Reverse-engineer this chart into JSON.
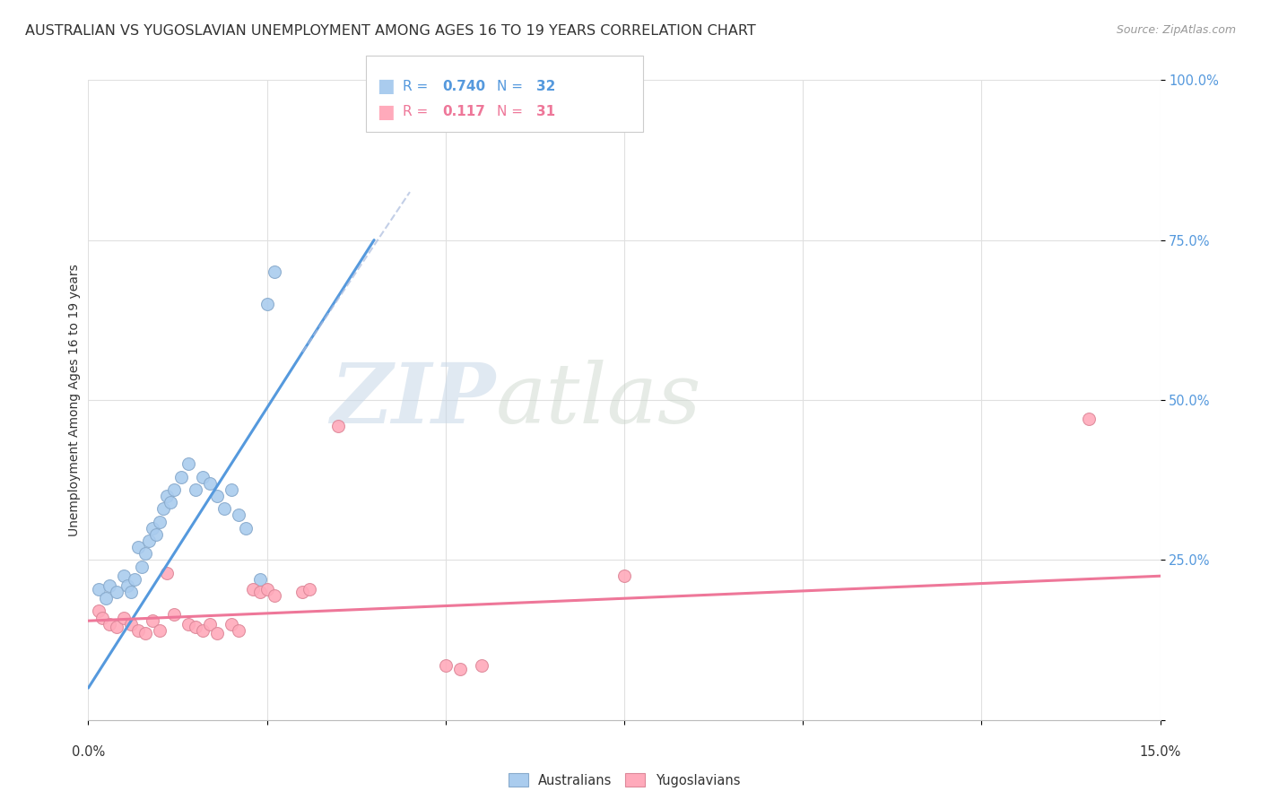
{
  "title": "AUSTRALIAN VS YUGOSLAVIAN UNEMPLOYMENT AMONG AGES 16 TO 19 YEARS CORRELATION CHART",
  "source": "Source: ZipAtlas.com",
  "ylabel": "Unemployment Among Ages 16 to 19 years",
  "xlim": [
    0.0,
    15.0
  ],
  "ylim": [
    0.0,
    100.0
  ],
  "watermark_zip": "ZIP",
  "watermark_atlas": "atlas",
  "legend_aus_R": "0.740",
  "legend_aus_N": "32",
  "legend_yug_R": "0.117",
  "legend_yug_N": "31",
  "australian_scatter": [
    [
      0.15,
      20.5
    ],
    [
      0.25,
      19.0
    ],
    [
      0.3,
      21.0
    ],
    [
      0.4,
      20.0
    ],
    [
      0.5,
      22.5
    ],
    [
      0.55,
      21.0
    ],
    [
      0.6,
      20.0
    ],
    [
      0.65,
      22.0
    ],
    [
      0.7,
      27.0
    ],
    [
      0.75,
      24.0
    ],
    [
      0.8,
      26.0
    ],
    [
      0.85,
      28.0
    ],
    [
      0.9,
      30.0
    ],
    [
      0.95,
      29.0
    ],
    [
      1.0,
      31.0
    ],
    [
      1.05,
      33.0
    ],
    [
      1.1,
      35.0
    ],
    [
      1.15,
      34.0
    ],
    [
      1.2,
      36.0
    ],
    [
      1.3,
      38.0
    ],
    [
      1.4,
      40.0
    ],
    [
      1.5,
      36.0
    ],
    [
      1.6,
      38.0
    ],
    [
      1.7,
      37.0
    ],
    [
      1.8,
      35.0
    ],
    [
      1.9,
      33.0
    ],
    [
      2.0,
      36.0
    ],
    [
      2.1,
      32.0
    ],
    [
      2.2,
      30.0
    ],
    [
      2.4,
      22.0
    ],
    [
      2.5,
      65.0
    ],
    [
      2.6,
      70.0
    ]
  ],
  "yugoslavian_scatter": [
    [
      0.15,
      17.0
    ],
    [
      0.2,
      16.0
    ],
    [
      0.3,
      15.0
    ],
    [
      0.4,
      14.5
    ],
    [
      0.5,
      16.0
    ],
    [
      0.6,
      15.0
    ],
    [
      0.7,
      14.0
    ],
    [
      0.8,
      13.5
    ],
    [
      0.9,
      15.5
    ],
    [
      1.0,
      14.0
    ],
    [
      1.1,
      23.0
    ],
    [
      1.2,
      16.5
    ],
    [
      1.4,
      15.0
    ],
    [
      1.5,
      14.5
    ],
    [
      1.6,
      14.0
    ],
    [
      1.7,
      15.0
    ],
    [
      1.8,
      13.5
    ],
    [
      2.0,
      15.0
    ],
    [
      2.1,
      14.0
    ],
    [
      2.3,
      20.5
    ],
    [
      2.4,
      20.0
    ],
    [
      2.5,
      20.5
    ],
    [
      2.6,
      19.5
    ],
    [
      3.0,
      20.0
    ],
    [
      3.1,
      20.5
    ],
    [
      3.5,
      46.0
    ],
    [
      5.0,
      8.5
    ],
    [
      5.2,
      8.0
    ],
    [
      5.5,
      8.5
    ],
    [
      7.5,
      22.5
    ],
    [
      14.0,
      47.0
    ]
  ],
  "aus_line": {
    "x0": 0.0,
    "y0": 5.0,
    "x1": 4.0,
    "y1": 75.0
  },
  "aus_dash_line": {
    "x0": 3.0,
    "y0": 57.5,
    "x1": 4.5,
    "y1": 82.5
  },
  "yug_line": {
    "x0": 0.0,
    "y0": 15.5,
    "x1": 15.0,
    "y1": 22.5
  },
  "aus_line_color": "#5599dd",
  "yug_line_color": "#ee7799",
  "scatter_aus_color": "#aaccee",
  "scatter_yug_color": "#ffaabb",
  "scatter_aus_edge": "#88aacc",
  "scatter_yug_edge": "#dd8899",
  "grid_color": "#e0e0e0",
  "background_color": "#ffffff",
  "legend_aus_color": "#5599dd",
  "legend_yug_color": "#ee7799",
  "title_color": "#333333",
  "source_color": "#999999",
  "ytick_color": "#5599dd",
  "xtick_color": "#333333",
  "ylabel_color": "#333333",
  "title_fontsize": 11.5,
  "source_fontsize": 9,
  "axis_label_fontsize": 10,
  "tick_fontsize": 10.5,
  "legend_fontsize": 11
}
